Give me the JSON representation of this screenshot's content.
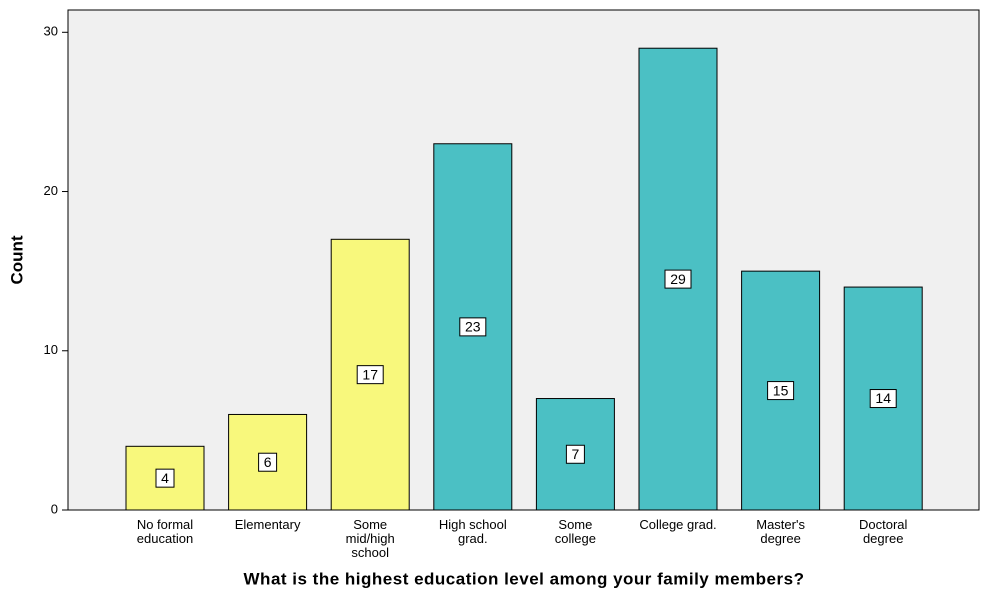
{
  "chart_data": {
    "type": "bar",
    "x_label": "What is the highest education level among your family members?",
    "y_label": "Count",
    "categories": [
      [
        "No formal",
        "education"
      ],
      [
        "Elementary"
      ],
      [
        "Some",
        "mid/high",
        "school"
      ],
      [
        "High school",
        "grad."
      ],
      [
        "Some",
        "college"
      ],
      [
        "College grad."
      ],
      [
        "Master's",
        "degree"
      ],
      [
        "Doctoral",
        "degree"
      ]
    ],
    "values": [
      4,
      6,
      17,
      23,
      7,
      29,
      15,
      14
    ],
    "colors": [
      "#f8f87c",
      "#f8f87c",
      "#f8f87c",
      "#4bc0c4",
      "#4bc0c4",
      "#4bc0c4",
      "#4bc0c4",
      "#4bc0c4"
    ],
    "ylim": [
      0,
      31.4
    ],
    "yticks": [
      0,
      10,
      20,
      30
    ],
    "grid": false
  }
}
